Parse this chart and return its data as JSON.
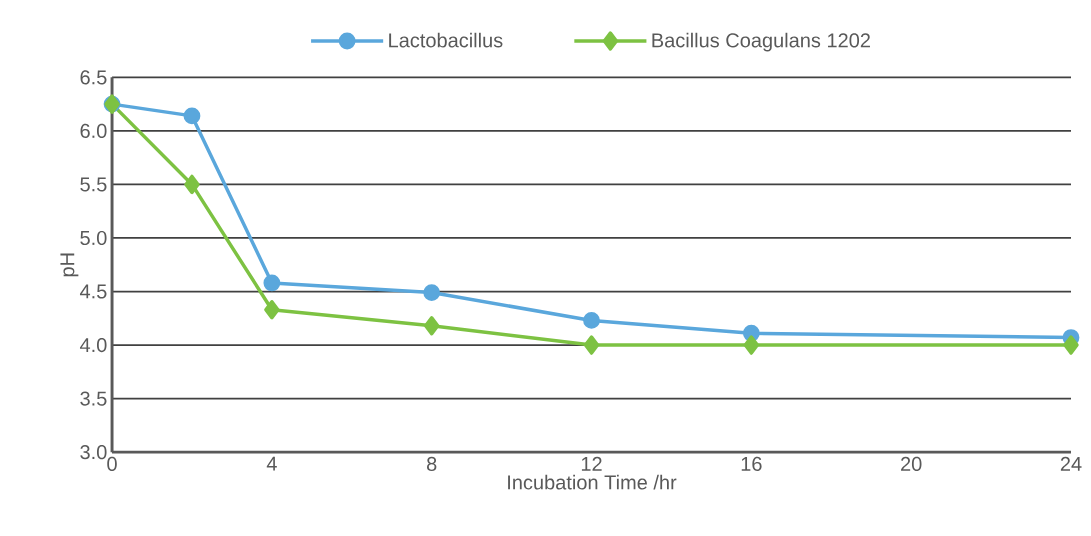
{
  "chart_data": {
    "type": "line",
    "xlabel": "Incubation Time /hr",
    "ylabel": "pH",
    "xlim": [
      0,
      24
    ],
    "xticks": [
      0,
      4,
      8,
      12,
      16,
      20,
      24
    ],
    "ylim": [
      3.0,
      6.5
    ],
    "yticks": [
      {
        "value": 3.0,
        "label": "3.0"
      },
      {
        "value": 3.5,
        "label": "3.5"
      },
      {
        "value": 4.0,
        "label": "4.0"
      },
      {
        "value": 4.5,
        "label": "4.5"
      },
      {
        "value": 5.0,
        "label": "5.0"
      },
      {
        "value": 5.5,
        "label": "5.5"
      },
      {
        "value": 6.0,
        "label": "6.0"
      },
      {
        "value": 6.5,
        "label": "6.5"
      }
    ],
    "grid": "y",
    "legend": "top",
    "line_style": "solid",
    "series": [
      {
        "name": "Lactobacillus",
        "color": "#5aa7dc",
        "marker": "circle",
        "x": [
          0,
          2,
          4,
          8,
          12,
          16,
          24
        ],
        "values": [
          6.25,
          6.14,
          4.58,
          4.49,
          4.23,
          4.11,
          4.07
        ]
      },
      {
        "name": "Bacillus Coagulans 1202",
        "color": "#7dc242",
        "marker": "diamond",
        "x": [
          0,
          2,
          4,
          8,
          12,
          16,
          24
        ],
        "values": [
          6.25,
          5.5,
          4.33,
          4.18,
          4.0,
          4.0,
          4.0
        ]
      }
    ]
  }
}
